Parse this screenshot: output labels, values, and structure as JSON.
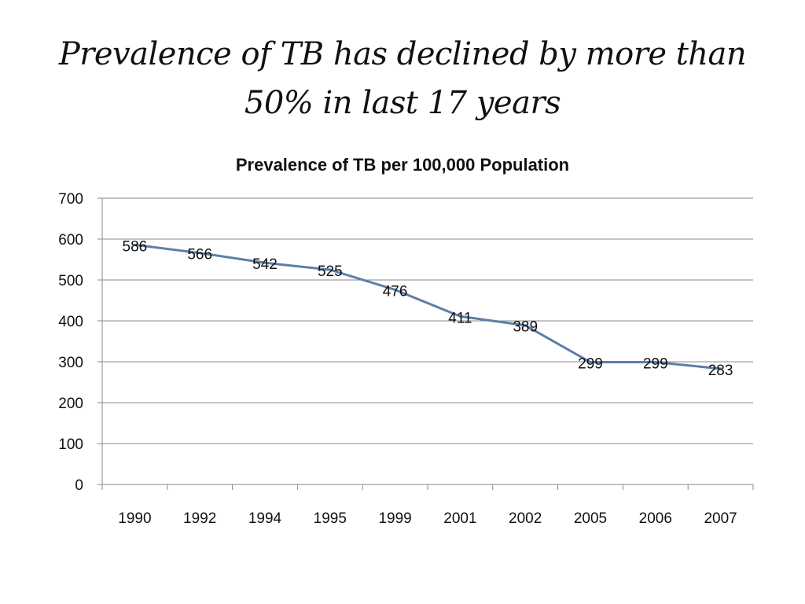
{
  "slide": {
    "title": "Prevalence of TB has declined by more than 50% in last 17 years"
  },
  "chart_data": {
    "type": "line",
    "title": "Prevalence of TB per 100,000 Population",
    "xlabel": "",
    "ylabel": "",
    "categories": [
      "1990",
      "1992",
      "1994",
      "1995",
      "1999",
      "2001",
      "2002",
      "2005",
      "2006",
      "2007"
    ],
    "series": [
      {
        "values": [
          586,
          566,
          542,
          525,
          476,
          411,
          389,
          299,
          299,
          283
        ],
        "color": "#5b7fa8"
      }
    ],
    "ylim": [
      0,
      700
    ],
    "yticks": [
      0,
      100,
      200,
      300,
      400,
      500,
      600,
      700
    ],
    "grid": true,
    "legend": "none",
    "data_labels": true
  }
}
